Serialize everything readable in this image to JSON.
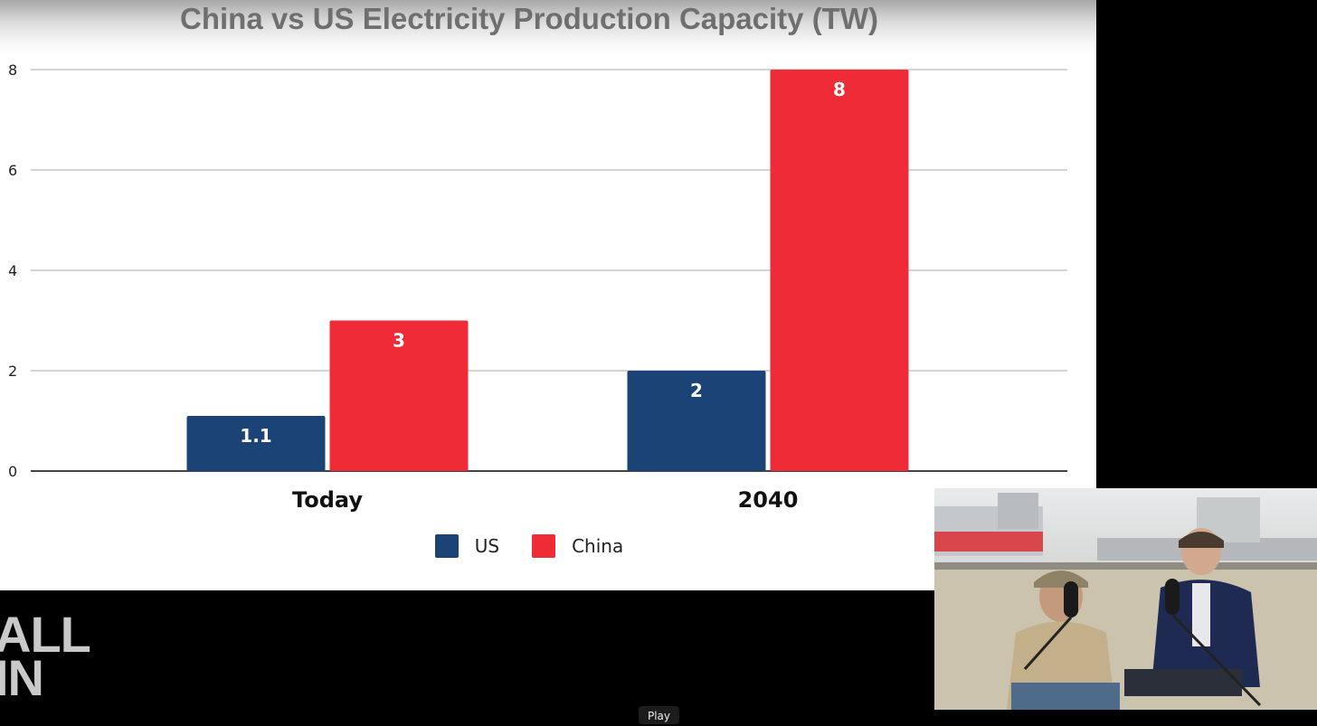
{
  "chart_data": {
    "type": "bar",
    "title": "China vs US Electricity Production Capacity (TW)",
    "categories": [
      "Today",
      "2040"
    ],
    "series": [
      {
        "name": "US",
        "values": [
          1.1,
          2
        ],
        "labels": [
          "1.1",
          "2"
        ],
        "color": "#1b4375"
      },
      {
        "name": "China",
        "values": [
          3,
          8
        ],
        "labels": [
          "3",
          "8"
        ],
        "color": "#ef2b37"
      }
    ],
    "yticks": [
      0,
      2,
      4,
      6,
      8
    ],
    "ylim": [
      0,
      8
    ],
    "grid": true,
    "legend_position": "bottom"
  },
  "logo": {
    "line1": "ALL",
    "line2": "IN"
  },
  "tooltip": {
    "text": "Play"
  },
  "pip": {
    "description_icon": "video-thumbnail"
  }
}
